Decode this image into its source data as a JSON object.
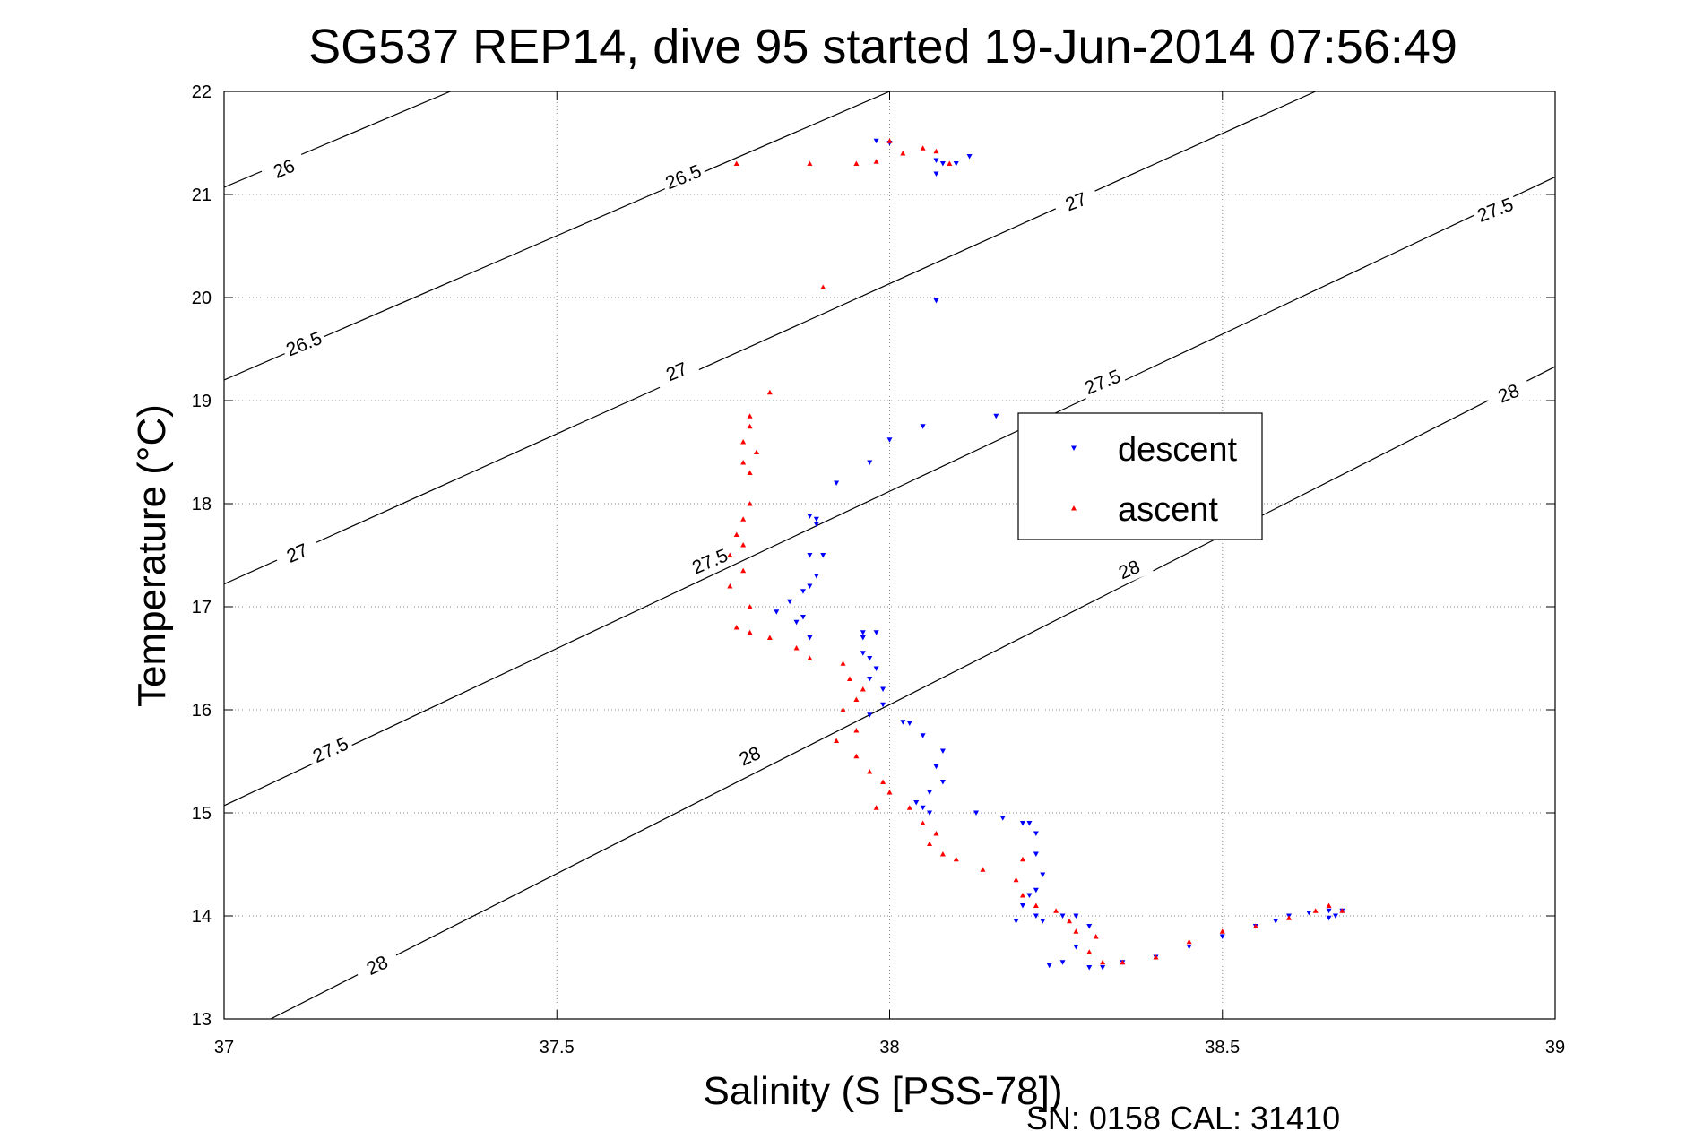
{
  "chart_data": {
    "type": "scatter",
    "title": "SG537 REP14, dive 95 started 19-Jun-2014 07:56:49",
    "xlabel": "Salinity (S [PSS-78])",
    "ylabel": "Temperature (°C)",
    "xlim": [
      37,
      39
    ],
    "ylim": [
      13,
      22
    ],
    "xticks": [
      "37",
      "37.5",
      "38",
      "38.5",
      "39"
    ],
    "yticks": [
      "13",
      "14",
      "15",
      "16",
      "17",
      "18",
      "19",
      "20",
      "21",
      "22"
    ],
    "grid": true,
    "legend_position": "upper-right inside plot",
    "footer": "SN: 0158  CAL: 31410",
    "contours": [
      {
        "label": "26",
        "x": [
          37.0,
          37.34
        ],
        "y": [
          21.07,
          22.0
        ]
      },
      {
        "label": "26.5",
        "x": [
          37.0,
          38.0
        ],
        "y": [
          19.2,
          22.0
        ]
      },
      {
        "label": "27",
        "x": [
          37.0,
          38.64
        ],
        "y": [
          17.22,
          22.0
        ]
      },
      {
        "label": "27.5",
        "x": [
          37.0,
          39.0
        ],
        "y": [
          15.07,
          21.17
        ]
      },
      {
        "label": "28",
        "x": [
          37.07,
          39.0
        ],
        "y": [
          13.0,
          19.33
        ]
      }
    ],
    "contour_labels": [
      {
        "text": "26",
        "x": 37.09,
        "y": 21.25,
        "angle": -23
      },
      {
        "text": "26.5",
        "x": 37.69,
        "y": 21.17,
        "angle": -22
      },
      {
        "text": "26.5",
        "x": 37.12,
        "y": 19.55,
        "angle": -22
      },
      {
        "text": "27",
        "x": 38.28,
        "y": 20.93,
        "angle": -21
      },
      {
        "text": "27",
        "x": 37.68,
        "y": 19.28,
        "angle": -22
      },
      {
        "text": "27",
        "x": 37.11,
        "y": 17.52,
        "angle": -23
      },
      {
        "text": "27.5",
        "x": 38.91,
        "y": 20.85,
        "angle": -21
      },
      {
        "text": "27.5",
        "x": 38.32,
        "y": 19.18,
        "angle": -22
      },
      {
        "text": "27.5",
        "x": 37.73,
        "y": 17.44,
        "angle": -23
      },
      {
        "text": "27.5",
        "x": 37.16,
        "y": 15.61,
        "angle": -24
      },
      {
        "text": "28",
        "x": 38.93,
        "y": 19.07,
        "angle": -22
      },
      {
        "text": "28",
        "x": 38.36,
        "y": 17.36,
        "angle": -23
      },
      {
        "text": "28",
        "x": 37.79,
        "y": 15.55,
        "angle": -24
      },
      {
        "text": "28",
        "x": 37.23,
        "y": 13.52,
        "angle": -25
      }
    ],
    "series": [
      {
        "name": "descent",
        "color": "#0000ff",
        "marker": "triangle-down",
        "points": [
          [
            37.98,
            21.52
          ],
          [
            38.0,
            21.5
          ],
          [
            38.07,
            21.33
          ],
          [
            38.08,
            21.3
          ],
          [
            38.1,
            21.3
          ],
          [
            38.07,
            21.2
          ],
          [
            38.12,
            21.37
          ],
          [
            38.07,
            19.97
          ],
          [
            38.16,
            18.85
          ],
          [
            38.05,
            18.75
          ],
          [
            38.0,
            18.62
          ],
          [
            37.97,
            18.4
          ],
          [
            37.92,
            18.2
          ],
          [
            37.88,
            17.88
          ],
          [
            37.89,
            17.85
          ],
          [
            37.89,
            17.8
          ],
          [
            37.88,
            17.5
          ],
          [
            37.9,
            17.5
          ],
          [
            37.89,
            17.3
          ],
          [
            37.88,
            17.2
          ],
          [
            37.87,
            17.15
          ],
          [
            37.85,
            17.05
          ],
          [
            37.83,
            16.95
          ],
          [
            37.87,
            16.9
          ],
          [
            37.88,
            16.7
          ],
          [
            37.86,
            16.85
          ],
          [
            37.96,
            16.75
          ],
          [
            37.98,
            16.75
          ],
          [
            37.96,
            16.7
          ],
          [
            37.96,
            16.55
          ],
          [
            37.97,
            16.5
          ],
          [
            37.98,
            16.4
          ],
          [
            37.97,
            16.3
          ],
          [
            37.99,
            16.2
          ],
          [
            37.99,
            16.05
          ],
          [
            37.97,
            15.95
          ],
          [
            38.02,
            15.88
          ],
          [
            38.03,
            15.87
          ],
          [
            38.05,
            15.75
          ],
          [
            38.08,
            15.6
          ],
          [
            38.07,
            15.45
          ],
          [
            38.08,
            15.3
          ],
          [
            38.06,
            15.2
          ],
          [
            38.04,
            15.1
          ],
          [
            38.05,
            15.05
          ],
          [
            38.06,
            15.0
          ],
          [
            38.13,
            15.0
          ],
          [
            38.17,
            14.95
          ],
          [
            38.2,
            14.9
          ],
          [
            38.21,
            14.9
          ],
          [
            38.22,
            14.8
          ],
          [
            38.22,
            14.6
          ],
          [
            38.23,
            14.4
          ],
          [
            38.22,
            14.25
          ],
          [
            38.21,
            14.2
          ],
          [
            38.2,
            14.1
          ],
          [
            38.22,
            14.0
          ],
          [
            38.19,
            13.95
          ],
          [
            38.23,
            13.95
          ],
          [
            38.26,
            14.0
          ],
          [
            38.28,
            14.0
          ],
          [
            38.3,
            13.9
          ],
          [
            38.28,
            13.7
          ],
          [
            38.26,
            13.55
          ],
          [
            38.24,
            13.52
          ],
          [
            38.3,
            13.5
          ],
          [
            38.32,
            13.5
          ],
          [
            38.35,
            13.55
          ],
          [
            38.4,
            13.6
          ],
          [
            38.45,
            13.7
          ],
          [
            38.5,
            13.8
          ],
          [
            38.55,
            13.9
          ],
          [
            38.58,
            13.95
          ],
          [
            38.6,
            14.0
          ],
          [
            38.63,
            14.03
          ],
          [
            38.66,
            14.05
          ],
          [
            38.67,
            14.0
          ],
          [
            38.66,
            13.98
          ],
          [
            38.68,
            14.05
          ]
        ]
      },
      {
        "name": "ascent",
        "color": "#ff0000",
        "marker": "triangle-up",
        "points": [
          [
            37.77,
            21.3
          ],
          [
            37.88,
            21.3
          ],
          [
            37.95,
            21.3
          ],
          [
            37.98,
            21.32
          ],
          [
            38.0,
            21.52
          ],
          [
            38.02,
            21.4
          ],
          [
            38.05,
            21.45
          ],
          [
            38.07,
            21.42
          ],
          [
            38.09,
            21.3
          ],
          [
            37.9,
            20.1
          ],
          [
            37.82,
            19.08
          ],
          [
            37.79,
            18.85
          ],
          [
            37.79,
            18.75
          ],
          [
            37.78,
            18.6
          ],
          [
            37.8,
            18.5
          ],
          [
            37.78,
            18.4
          ],
          [
            37.79,
            18.3
          ],
          [
            37.79,
            18.0
          ],
          [
            37.78,
            17.85
          ],
          [
            37.77,
            17.7
          ],
          [
            37.78,
            17.6
          ],
          [
            37.76,
            17.5
          ],
          [
            37.78,
            17.35
          ],
          [
            37.76,
            17.2
          ],
          [
            37.79,
            17.0
          ],
          [
            37.77,
            16.8
          ],
          [
            37.79,
            16.75
          ],
          [
            37.82,
            16.7
          ],
          [
            37.86,
            16.6
          ],
          [
            37.88,
            16.5
          ],
          [
            37.93,
            16.45
          ],
          [
            37.94,
            16.3
          ],
          [
            37.96,
            16.2
          ],
          [
            37.95,
            16.1
          ],
          [
            37.93,
            16.0
          ],
          [
            37.95,
            15.8
          ],
          [
            37.92,
            15.7
          ],
          [
            37.95,
            15.55
          ],
          [
            37.97,
            15.4
          ],
          [
            37.99,
            15.3
          ],
          [
            38.0,
            15.2
          ],
          [
            37.98,
            15.05
          ],
          [
            38.03,
            15.05
          ],
          [
            38.05,
            14.9
          ],
          [
            38.07,
            14.8
          ],
          [
            38.06,
            14.7
          ],
          [
            38.08,
            14.6
          ],
          [
            38.1,
            14.55
          ],
          [
            38.14,
            14.45
          ],
          [
            38.2,
            14.55
          ],
          [
            38.19,
            14.35
          ],
          [
            38.2,
            14.2
          ],
          [
            38.22,
            14.1
          ],
          [
            38.25,
            14.05
          ],
          [
            38.27,
            13.95
          ],
          [
            38.28,
            13.85
          ],
          [
            38.31,
            13.8
          ],
          [
            38.3,
            13.65
          ],
          [
            38.32,
            13.55
          ],
          [
            38.35,
            13.55
          ],
          [
            38.4,
            13.6
          ],
          [
            38.45,
            13.75
          ],
          [
            38.5,
            13.85
          ],
          [
            38.55,
            13.9
          ],
          [
            38.6,
            13.98
          ],
          [
            38.64,
            14.05
          ],
          [
            38.66,
            14.1
          ],
          [
            38.68,
            14.05
          ]
        ]
      }
    ]
  }
}
